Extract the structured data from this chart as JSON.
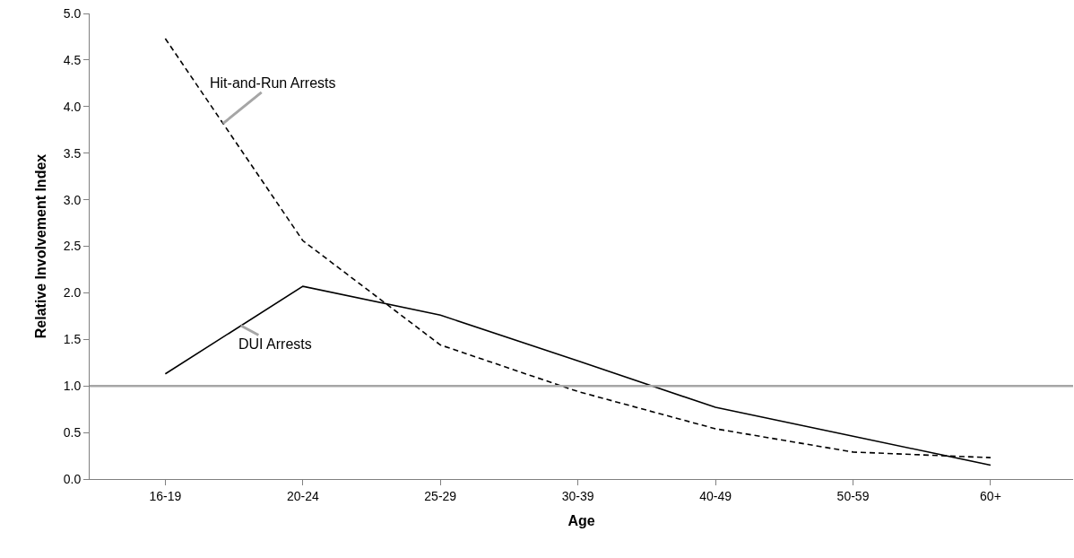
{
  "chart_data": {
    "type": "line",
    "xlabel": "Age",
    "ylabel": "Relative Involvement Index",
    "categories": [
      "16-19",
      "20-24",
      "25-29",
      "30-39",
      "40-49",
      "50-59",
      "60+"
    ],
    "series": [
      {
        "name": "Hit-and-Run Arrests",
        "color": "#000000",
        "line_style": "dashed",
        "values": [
          4.73,
          2.56,
          1.44,
          0.94,
          0.54,
          0.29,
          0.23
        ]
      },
      {
        "name": "DUI Arrests",
        "color": "#000000",
        "line_style": "solid",
        "values": [
          1.13,
          2.07,
          1.76,
          1.27,
          0.77,
          0.46,
          0.15
        ]
      }
    ],
    "ylim": [
      0,
      5.0
    ],
    "yticks": [
      {
        "value": 0,
        "label": "0.0"
      },
      {
        "value": 0.5,
        "label": "0.5"
      },
      {
        "value": 1,
        "label": "1.0"
      },
      {
        "value": 1.5,
        "label": "1.5"
      },
      {
        "value": 2,
        "label": "2.0"
      },
      {
        "value": 2.5,
        "label": "2.5"
      },
      {
        "value": 3,
        "label": "3.0"
      },
      {
        "value": 3.5,
        "label": "3.5"
      },
      {
        "value": 4,
        "label": "4.0"
      },
      {
        "value": 4.5,
        "label": "4.5"
      },
      {
        "value": 5,
        "label": "5.0"
      }
    ],
    "ref_lines": [
      {
        "axis": "y",
        "value": 1,
        "color": "#a6a6a6"
      }
    ],
    "legend": false,
    "marker": "none"
  }
}
